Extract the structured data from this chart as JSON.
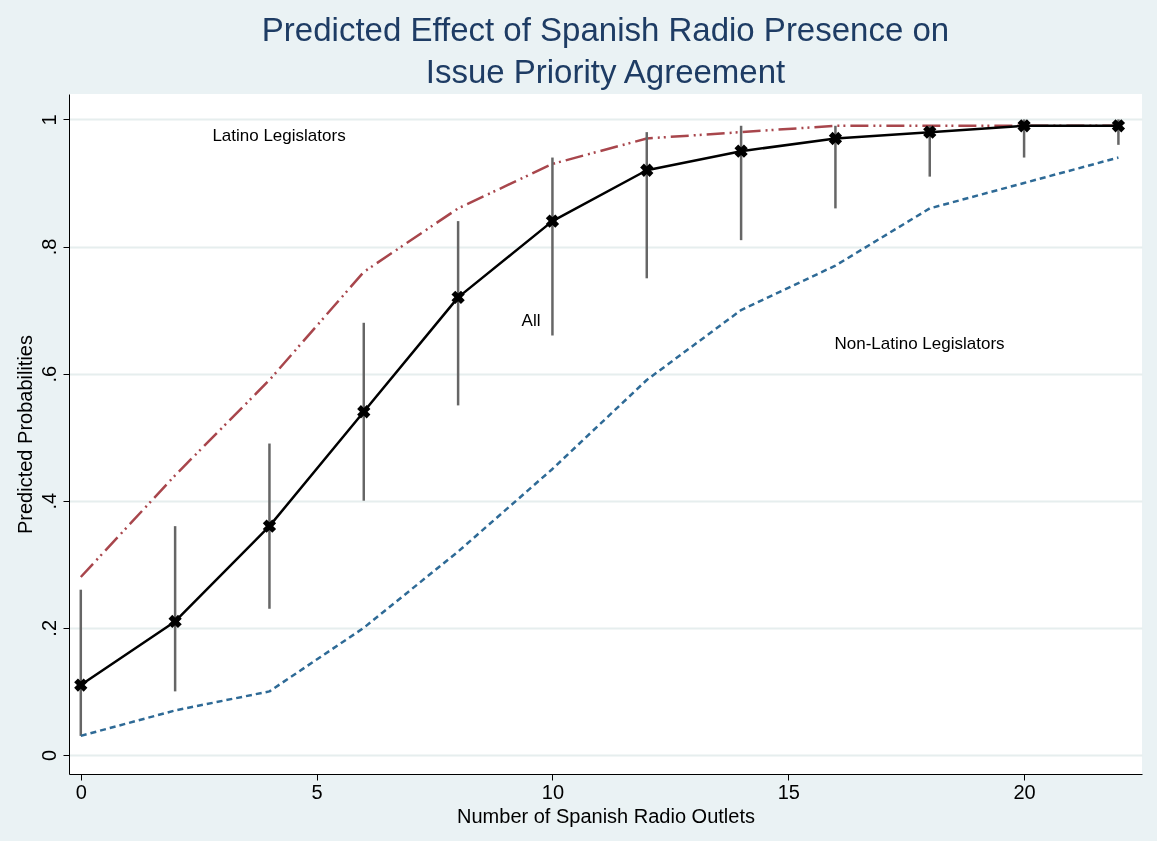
{
  "chart_data": {
    "type": "line",
    "title": "Predicted Effect of Spanish Radio Presence on Issue Priority Agreement",
    "xlabel": "Number of Spanish Radio Outlets",
    "ylabel": "Predicted Probabilities",
    "x": [
      0,
      2,
      4,
      6,
      8,
      10,
      12,
      14,
      16,
      18,
      20,
      22
    ],
    "series": [
      {
        "color": "#a8464c",
        "line_style": "dashdotdot",
        "marker": "none",
        "values": [
          0.28,
          0.44,
          0.59,
          0.76,
          0.86,
          0.93,
          0.97,
          0.98,
          0.99,
          0.99,
          0.99,
          0.99
        ]
      },
      {
        "color": "#000000",
        "line_style": "solid",
        "marker": "cross",
        "values": [
          0.11,
          0.21,
          0.36,
          0.54,
          0.72,
          0.84,
          0.92,
          0.95,
          0.97,
          0.98,
          0.99,
          0.99
        ],
        "errors": [
          [
            0.03,
            0.26
          ],
          [
            0.1,
            0.36
          ],
          [
            0.23,
            0.49
          ],
          [
            0.4,
            0.68
          ],
          [
            0.55,
            0.84
          ],
          [
            0.66,
            0.94
          ],
          [
            0.75,
            0.98
          ],
          [
            0.81,
            0.99
          ],
          [
            0.86,
            0.99
          ],
          [
            0.91,
            0.99
          ],
          [
            0.94,
            1.0
          ],
          [
            0.96,
            1.0
          ]
        ]
      },
      {
        "color": "#2e6a96",
        "line_style": "dashed",
        "marker": "none",
        "values": [
          0.03,
          0.07,
          0.1,
          0.2,
          0.32,
          0.45,
          0.59,
          0.7,
          0.77,
          0.86,
          0.9,
          0.94
        ]
      }
    ],
    "annotations": [
      "Latino Legislators",
      "All",
      "Non-Latino Legislators"
    ],
    "xlim": [
      -0.25,
      22.5
    ],
    "ylim": [
      -0.03,
      1.04
    ],
    "xticks": [
      0,
      5,
      10,
      15,
      20
    ],
    "yticks": [
      0,
      {
        "value": 0.2,
        "label": ".2"
      },
      {
        "value": 0.4,
        "label": ".4"
      },
      {
        "value": 0.6,
        "label": ".6"
      },
      {
        "value": 0.8,
        "label": ".8"
      },
      1
    ],
    "grid": "y"
  }
}
